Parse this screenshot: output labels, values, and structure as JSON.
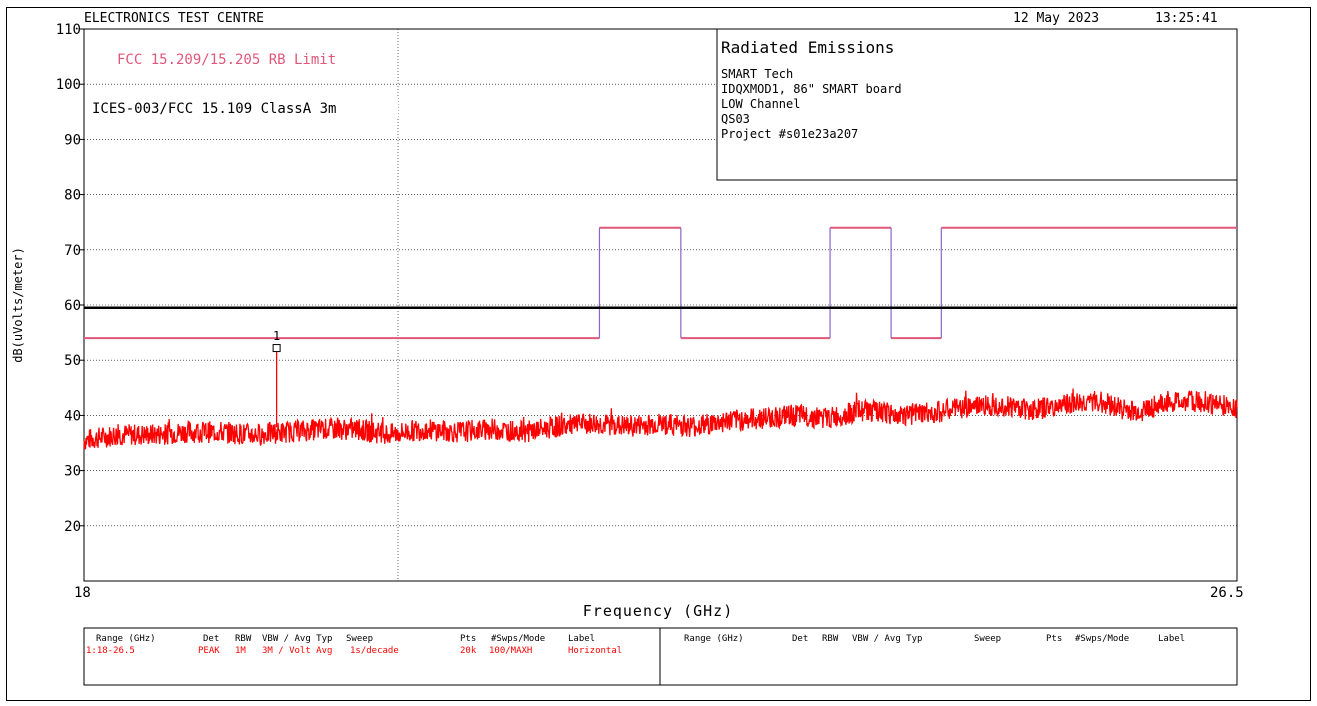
{
  "header": {
    "lab_name": "ELECTRONICS TEST CENTRE",
    "date": "12 May 2023",
    "time": "13:25:41"
  },
  "info_box": {
    "title": "Radiated Emissions",
    "lines": [
      "SMART Tech",
      "IDQXMOD1, 86\" SMART board",
      "LOW Channel",
      "QS03",
      "Project #s01e23a207"
    ]
  },
  "limit_labels": {
    "fcc_rb": "FCC 15.209/15.205 RB Limit",
    "ices": "ICES-003/FCC 15.109 ClassA 3m"
  },
  "colors": {
    "trace": "#ff0000",
    "rb_limit": "#e0577a",
    "rb_limit_edge": "#8866cc",
    "class_a_limit": "#000000",
    "grid": "#000000",
    "settings_text": "#ff0000"
  },
  "chart_data": {
    "type": "line",
    "title": "",
    "xlabel": "Frequency (GHz)",
    "ylabel": "dB(uVolts/meter)",
    "xlim": [
      18,
      26.5
    ],
    "ylim": [
      10,
      110
    ],
    "x_tick_labels": [
      "18",
      "26.5"
    ],
    "y_ticks": [
      20,
      30,
      40,
      50,
      60,
      70,
      80,
      90,
      100,
      110
    ],
    "grid": true,
    "series": [
      {
        "name": "Horizontal",
        "x": [
          18.0,
          18.25,
          18.5,
          18.75,
          19.0,
          19.25,
          19.5,
          19.75,
          20.0,
          20.25,
          20.5,
          20.75,
          21.0,
          21.25,
          21.5,
          21.75,
          22.0,
          22.25,
          22.5,
          22.75,
          23.0,
          23.25,
          23.5,
          23.75,
          24.0,
          24.25,
          24.5,
          24.75,
          25.0,
          25.25,
          25.5,
          25.75,
          26.0,
          26.25,
          26.5
        ],
        "y": [
          35.5,
          36.5,
          36.5,
          37.0,
          37.0,
          36.5,
          37.0,
          37.5,
          37.5,
          36.5,
          37.5,
          37.0,
          37.5,
          37.0,
          38.0,
          38.5,
          38.0,
          38.5,
          38.0,
          39.0,
          39.5,
          40.0,
          39.5,
          41.0,
          40.0,
          40.5,
          41.5,
          42.0,
          41.0,
          42.0,
          42.5,
          40.5,
          42.5,
          42.5,
          41.5
        ]
      }
    ],
    "limits": [
      {
        "name": "FCC 15.209/15.205 RB Limit",
        "segments": [
          {
            "x": [
              18.0,
              21.8
            ],
            "y": 54
          },
          {
            "x": [
              21.8,
              22.4
            ],
            "y": 74
          },
          {
            "x": [
              22.4,
              23.5
            ],
            "y": 54
          },
          {
            "x": [
              23.5,
              23.95
            ],
            "y": 74
          },
          {
            "x": [
              23.95,
              24.32
            ],
            "y": 54
          },
          {
            "x": [
              24.32,
              26.5
            ],
            "y": 74
          }
        ]
      },
      {
        "name": "ICES-003/FCC 15.109 ClassA 3m",
        "segments": [
          {
            "x": [
              18.0,
              26.5
            ],
            "y": 59.5
          }
        ]
      }
    ],
    "markers": [
      {
        "label": "1",
        "x": 19.42,
        "y": 52.2
      }
    ]
  },
  "settings_table": {
    "headers": [
      "Range (GHz)",
      "Det",
      "RBW",
      "VBW / Avg Typ",
      "Sweep",
      "Pts",
      "#Swps/Mode",
      "Label"
    ],
    "rows": [
      [
        "1:18-26.5",
        "PEAK",
        "1M",
        "3M / Volt Avg",
        "1s/decade",
        "20k",
        "100/MAXH",
        "Horizontal"
      ]
    ]
  }
}
